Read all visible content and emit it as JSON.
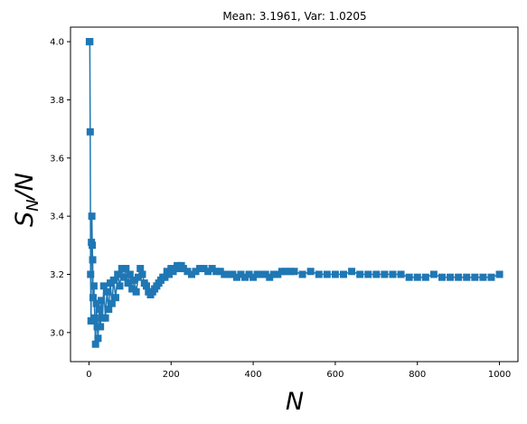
{
  "chart_data": {
    "type": "line",
    "title": "Mean: 3.1961, Var: 1.0205",
    "xlabel": {
      "main": "N",
      "sub": ""
    },
    "ylabel": {
      "main": "S",
      "sub": "N",
      "tail": "/N"
    },
    "xlim": [
      -45,
      1045
    ],
    "ylim": [
      2.9,
      4.05
    ],
    "xticks": [
      0,
      200,
      400,
      600,
      800,
      1000
    ],
    "xtick_labels": [
      "0",
      "200",
      "400",
      "600",
      "800",
      "1000"
    ],
    "yticks": [
      3.0,
      3.2,
      3.4,
      3.6,
      3.8,
      4.0
    ],
    "ytick_labels": [
      "3.0",
      "3.2",
      "3.4",
      "3.6",
      "3.8",
      "4.0"
    ],
    "grid": false,
    "marker": "square",
    "color": "#1f77b4",
    "series": [
      {
        "x": [
          1,
          2,
          3,
          4,
          5,
          6,
          7,
          8,
          9,
          10,
          12,
          14,
          16,
          18,
          20,
          22,
          25,
          28,
          30,
          33,
          36,
          40,
          44,
          48,
          52,
          56,
          60,
          65,
          70,
          75,
          80,
          85,
          90,
          95,
          100,
          105,
          110,
          115,
          120,
          125,
          130,
          135,
          140,
          145,
          150,
          155,
          160,
          165,
          170,
          175,
          180,
          185,
          190,
          195,
          200,
          205,
          210,
          215,
          220,
          225,
          230,
          240,
          250,
          260,
          270,
          280,
          290,
          300,
          310,
          320,
          330,
          340,
          350,
          360,
          370,
          380,
          390,
          400,
          410,
          420,
          430,
          440,
          450,
          460,
          470,
          480,
          490,
          500,
          520,
          540,
          560,
          580,
          600,
          620,
          640,
          660,
          680,
          700,
          720,
          740,
          760,
          780,
          800,
          820,
          840,
          860,
          880,
          900,
          920,
          940,
          960,
          980,
          1000
        ],
        "y": [
          4.0,
          4.0,
          3.69,
          3.2,
          3.04,
          3.31,
          3.4,
          3.3,
          3.25,
          3.12,
          3.16,
          3.05,
          2.96,
          3.1,
          3.02,
          2.98,
          3.08,
          3.02,
          3.11,
          3.05,
          3.16,
          3.05,
          3.14,
          3.08,
          3.17,
          3.1,
          3.18,
          3.12,
          3.2,
          3.16,
          3.22,
          3.19,
          3.22,
          3.17,
          3.2,
          3.15,
          3.18,
          3.14,
          3.19,
          3.22,
          3.2,
          3.17,
          3.16,
          3.14,
          3.13,
          3.14,
          3.15,
          3.16,
          3.17,
          3.18,
          3.19,
          3.19,
          3.21,
          3.2,
          3.22,
          3.21,
          3.22,
          3.23,
          3.22,
          3.23,
          3.22,
          3.21,
          3.2,
          3.21,
          3.22,
          3.22,
          3.21,
          3.22,
          3.21,
          3.21,
          3.2,
          3.2,
          3.2,
          3.19,
          3.2,
          3.19,
          3.2,
          3.19,
          3.2,
          3.2,
          3.2,
          3.19,
          3.2,
          3.2,
          3.21,
          3.21,
          3.21,
          3.21,
          3.2,
          3.21,
          3.2,
          3.2,
          3.2,
          3.2,
          3.21,
          3.2,
          3.2,
          3.2,
          3.2,
          3.2,
          3.2,
          3.19,
          3.19,
          3.19,
          3.2,
          3.19,
          3.19,
          3.19,
          3.19,
          3.19,
          3.19,
          3.19,
          3.2
        ]
      }
    ]
  }
}
